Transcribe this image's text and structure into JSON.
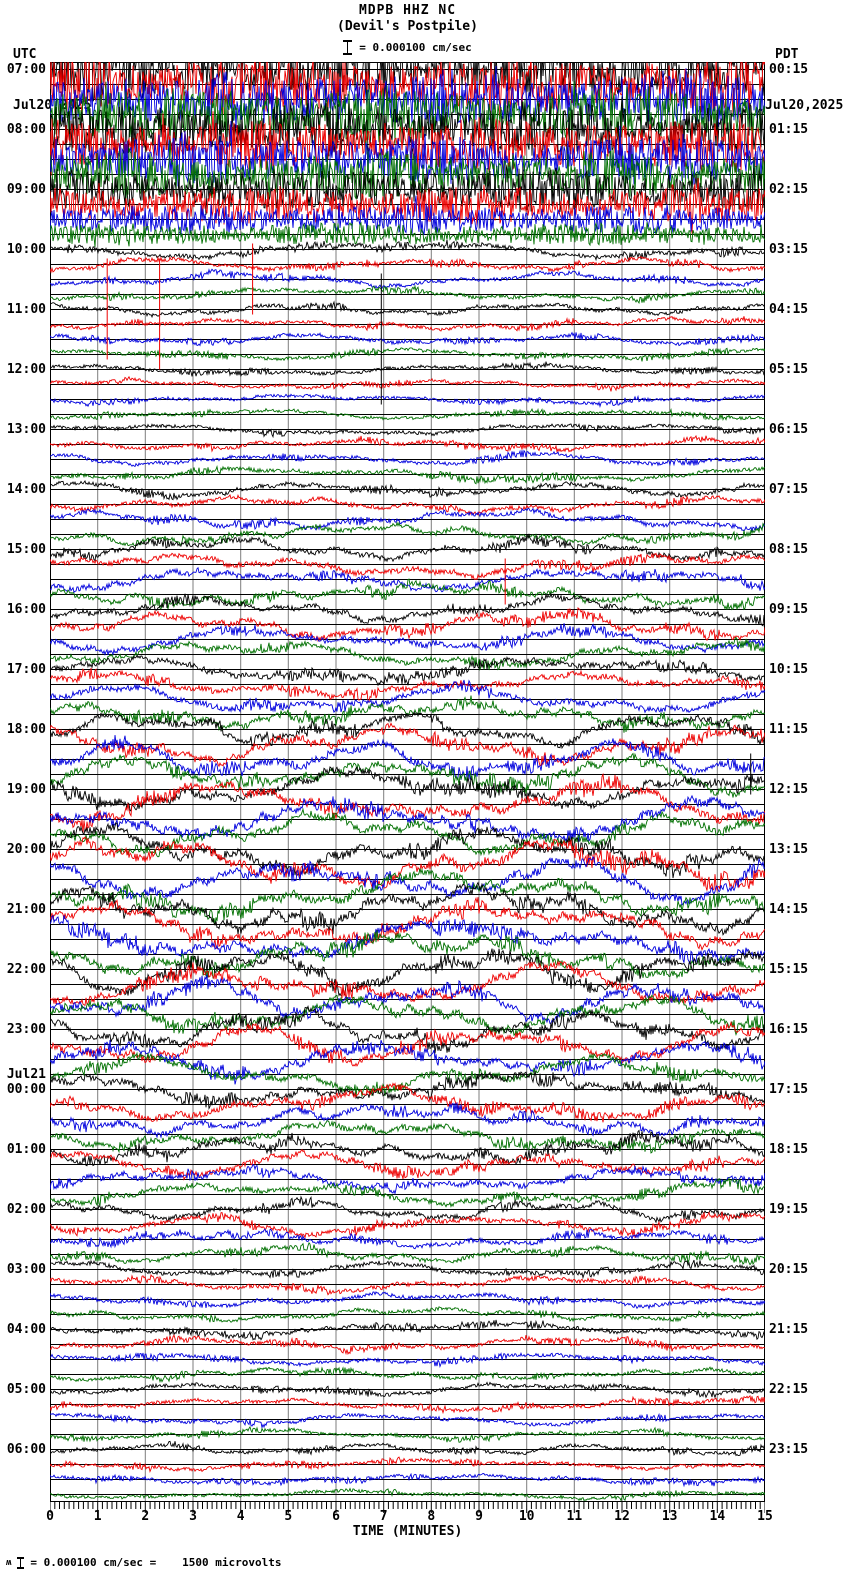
{
  "header": {
    "title": "MDPB HHZ NC",
    "subtitle": "(Devil's Postpile)",
    "scale_label": "= 0.000100 cm/sec",
    "left": {
      "tz": "UTC",
      "date": "Jul20,2025"
    },
    "right": {
      "tz": "PDT",
      "date": "Jul20,2025"
    }
  },
  "footer": {
    "symbol": "ʍ",
    "equation": "= 0.000100 cm/sec =",
    "value": "   1500 microvolts"
  },
  "axis": {
    "label": "TIME (MINUTES)",
    "ticks": [
      0,
      1,
      2,
      3,
      4,
      5,
      6,
      7,
      8,
      9,
      10,
      11,
      12,
      13,
      14,
      15
    ]
  },
  "chart_data": {
    "type": "heliplot",
    "station": "MDPB HHZ NC",
    "location": "Devil's Postpile",
    "start_utc": "Jul20,2025 07:00",
    "end_utc": "Jul21,2025 07:00",
    "minutes_per_row": 15,
    "rows": 96,
    "x_range_minutes": [
      0,
      15
    ],
    "trace_colors": [
      "#000000",
      "#ee0000",
      "#0000dd",
      "#007000"
    ],
    "grid_color": "#7d7d7d",
    "row_line_color": "#000000",
    "left_labels": [
      {
        "row": 0,
        "text": "07:00"
      },
      {
        "row": 4,
        "text": "08:00"
      },
      {
        "row": 8,
        "text": "09:00"
      },
      {
        "row": 12,
        "text": "10:00"
      },
      {
        "row": 16,
        "text": "11:00"
      },
      {
        "row": 20,
        "text": "12:00"
      },
      {
        "row": 24,
        "text": "13:00"
      },
      {
        "row": 28,
        "text": "14:00"
      },
      {
        "row": 32,
        "text": "15:00"
      },
      {
        "row": 36,
        "text": "16:00"
      },
      {
        "row": 40,
        "text": "17:00"
      },
      {
        "row": 44,
        "text": "18:00"
      },
      {
        "row": 48,
        "text": "19:00"
      },
      {
        "row": 52,
        "text": "20:00"
      },
      {
        "row": 56,
        "text": "21:00"
      },
      {
        "row": 60,
        "text": "22:00"
      },
      {
        "row": 64,
        "text": "23:00"
      },
      {
        "row": 68,
        "text": "00:00",
        "date": "Jul21"
      },
      {
        "row": 72,
        "text": "01:00"
      },
      {
        "row": 76,
        "text": "02:00"
      },
      {
        "row": 80,
        "text": "03:00"
      },
      {
        "row": 84,
        "text": "04:00"
      },
      {
        "row": 88,
        "text": "05:00"
      },
      {
        "row": 92,
        "text": "06:00"
      }
    ],
    "right_labels": [
      {
        "row": 0,
        "text": "00:15"
      },
      {
        "row": 4,
        "text": "01:15"
      },
      {
        "row": 8,
        "text": "02:15"
      },
      {
        "row": 12,
        "text": "03:15"
      },
      {
        "row": 16,
        "text": "04:15"
      },
      {
        "row": 20,
        "text": "05:15"
      },
      {
        "row": 24,
        "text": "06:15"
      },
      {
        "row": 28,
        "text": "07:15"
      },
      {
        "row": 32,
        "text": "08:15"
      },
      {
        "row": 36,
        "text": "09:15"
      },
      {
        "row": 40,
        "text": "10:15"
      },
      {
        "row": 44,
        "text": "11:15"
      },
      {
        "row": 48,
        "text": "12:15"
      },
      {
        "row": 52,
        "text": "13:15"
      },
      {
        "row": 56,
        "text": "14:15"
      },
      {
        "row": 60,
        "text": "15:15"
      },
      {
        "row": 64,
        "text": "16:15"
      },
      {
        "row": 68,
        "text": "17:15"
      },
      {
        "row": 72,
        "text": "18:15"
      },
      {
        "row": 76,
        "text": "19:15"
      },
      {
        "row": 80,
        "text": "20:15"
      },
      {
        "row": 84,
        "text": "21:15"
      },
      {
        "row": 88,
        "text": "22:15"
      },
      {
        "row": 92,
        "text": "23:15"
      }
    ],
    "amplitude_rows": [
      2.3,
      2.3,
      2.2,
      2.2,
      2.2,
      2.1,
      2.0,
      1.9,
      1.7,
      1.5,
      1.2,
      0.9,
      0.55,
      0.5,
      0.45,
      0.4,
      0.38,
      0.36,
      0.35,
      0.35,
      0.32,
      0.3,
      0.3,
      0.32,
      0.35,
      0.38,
      0.4,
      0.45,
      0.5,
      0.55,
      0.6,
      0.65,
      0.7,
      0.75,
      0.8,
      0.75,
      0.8,
      0.85,
      0.85,
      0.8,
      0.8,
      0.85,
      0.9,
      0.95,
      1.1,
      1.15,
      1.2,
      1.25,
      1.3,
      1.35,
      1.4,
      1.4,
      1.5,
      1.55,
      1.5,
      1.45,
      1.45,
      1.4,
      1.4,
      1.35,
      1.35,
      1.3,
      1.3,
      1.25,
      1.25,
      1.2,
      1.15,
      1.1,
      1.05,
      1.0,
      0.95,
      0.9,
      0.9,
      0.85,
      0.8,
      0.75,
      0.7,
      0.65,
      0.6,
      0.55,
      0.5,
      0.48,
      0.45,
      0.42,
      0.45,
      0.42,
      0.4,
      0.38,
      0.4,
      0.38,
      0.36,
      0.34,
      0.35,
      0.33,
      0.3,
      0.28
    ],
    "dense_rows": 12,
    "spikes": [
      {
        "row": 13,
        "minute": 1.2,
        "len": 95,
        "color": "#ee0000"
      },
      {
        "row": 13,
        "minute": 2.3,
        "len": 105,
        "color": "#ee0000"
      },
      {
        "row": 12,
        "minute": 4.25,
        "len": 65,
        "color": "#ee0000"
      },
      {
        "row": 14,
        "minute": 6.95,
        "len": 125,
        "color": "#000000"
      },
      {
        "row": 33,
        "minute": 9.55,
        "len": 40,
        "color": "#ee0000"
      },
      {
        "row": 46,
        "minute": 14.7,
        "len": 35,
        "color": "#000000"
      }
    ]
  }
}
